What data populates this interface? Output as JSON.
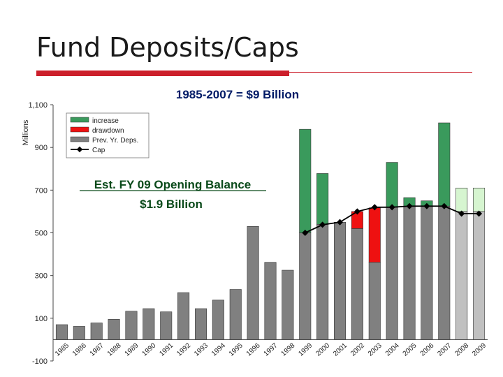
{
  "slide": {
    "title": "Fund Deposits/Caps"
  },
  "colors": {
    "increase": "#3a9a5c",
    "drawdown": "#ee1111",
    "prev": "#808080",
    "projection_top": "#d6f5d0",
    "projection_base": "#c0c0c0",
    "cap": "#000000",
    "accent": "#cc1f2b"
  },
  "annotation": {
    "line1": "Est. FY 09 Opening Balance",
    "line2": "$1.9 Billion"
  },
  "chart_data": {
    "type": "bar",
    "title": "1985-2007 = $9 Billion",
    "ylabel": "Millions",
    "ylim": [
      -100,
      1100
    ],
    "yticks": [
      -100,
      100,
      300,
      500,
      700,
      900,
      1100
    ],
    "ytick_labels": [
      "-100",
      "100",
      "300",
      "500",
      "700",
      "900",
      "1,100"
    ],
    "categories": [
      "1985",
      "1986",
      "1987",
      "1988",
      "1989",
      "1990",
      "1991",
      "1992",
      "1993",
      "1994",
      "1995",
      "1996",
      "1997",
      "1998",
      "1999",
      "2000",
      "2001",
      "2002",
      "2003",
      "2004",
      "2005",
      "2006",
      "2007",
      "2008",
      "2009"
    ],
    "legend": {
      "position": "top-left",
      "entries": [
        "increase",
        "drawdown",
        "Prev. Yr. Deps.",
        "Cap"
      ]
    },
    "series": [
      {
        "name": "Prev. Yr. Deps.",
        "values": [
          70,
          62,
          78,
          95,
          133,
          145,
          130,
          220,
          145,
          185,
          235,
          530,
          362,
          325,
          500,
          540,
          550,
          520,
          362,
          620,
          625,
          625,
          625,
          600,
          600
        ]
      },
      {
        "name": "increase",
        "values": [
          0,
          0,
          0,
          0,
          0,
          0,
          0,
          0,
          0,
          0,
          0,
          0,
          0,
          0,
          485,
          238,
          0,
          0,
          0,
          210,
          40,
          25,
          390,
          110,
          110
        ]
      },
      {
        "name": "drawdown",
        "values": [
          0,
          0,
          0,
          0,
          0,
          0,
          0,
          0,
          0,
          0,
          0,
          0,
          0,
          0,
          0,
          0,
          0,
          80,
          255,
          0,
          0,
          0,
          0,
          0,
          0
        ]
      },
      {
        "name": "Cap",
        "values": [
          null,
          null,
          null,
          null,
          null,
          null,
          null,
          null,
          null,
          null,
          null,
          null,
          null,
          null,
          500,
          538,
          550,
          600,
          620,
          620,
          625,
          625,
          625,
          590,
          590
        ]
      }
    ],
    "projection_categories": [
      "2008",
      "2009"
    ],
    "grid": false
  }
}
